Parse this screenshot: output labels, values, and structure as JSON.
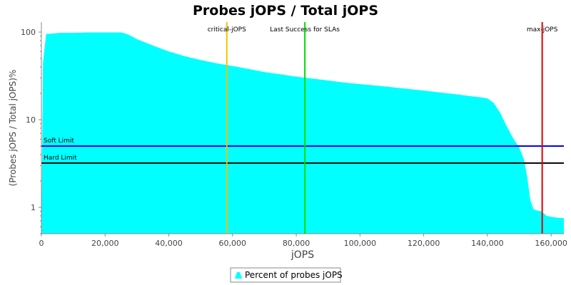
{
  "chart_data": {
    "type": "area",
    "title": "Probes jOPS / Total jOPS",
    "xlabel": "jOPS",
    "ylabel": "(Probes jOPS / Total jOPS)%",
    "xlim": [
      0,
      164000
    ],
    "ylim": [
      0.5,
      130
    ],
    "yscale": "log",
    "grid": false,
    "legend_position": "bottom-center",
    "x_ticks": [
      0,
      20000,
      40000,
      60000,
      80000,
      100000,
      120000,
      140000,
      160000
    ],
    "x_tick_labels": [
      "0",
      "20,000",
      "40,000",
      "60,000",
      "80,000",
      "100,000",
      "120,000",
      "140,000",
      "160,000"
    ],
    "y_ticks": [
      1,
      10,
      100
    ],
    "y_tick_labels": [
      "1",
      "10",
      "100"
    ],
    "series": [
      {
        "name": "Percent of probes jOPS",
        "color": "#00ffff",
        "x": [
          0,
          500,
          1500,
          3000,
          6000,
          10000,
          15000,
          20000,
          23000,
          25000,
          26500,
          28000,
          30000,
          33000,
          36000,
          40000,
          45000,
          50000,
          55000,
          60000,
          65000,
          70000,
          75000,
          80000,
          85000,
          90000,
          95000,
          100000,
          105000,
          110000,
          115000,
          120000,
          125000,
          130000,
          135000,
          138000,
          140000,
          142000,
          144000,
          146000,
          148000,
          150000,
          151500,
          152500,
          153500,
          154500,
          155500,
          157000,
          158500,
          160000,
          162000,
          164000
        ],
        "y": [
          0.5,
          45,
          95,
          96,
          98,
          98,
          99,
          99,
          99,
          99,
          96,
          91,
          83,
          75,
          68,
          60,
          53,
          48,
          44,
          41,
          38,
          35,
          33,
          31,
          29.5,
          28,
          26.5,
          25.5,
          24.5,
          23.5,
          22.5,
          21.5,
          20.5,
          19.5,
          18.5,
          18,
          17.5,
          15.5,
          12,
          8.5,
          6.2,
          4.8,
          3.5,
          2.2,
          1.2,
          0.95,
          0.92,
          0.9,
          0.8,
          0.78,
          0.76,
          0.75
        ]
      }
    ],
    "vertical_markers": [
      {
        "label": "critical-jOPS",
        "x": 58200,
        "color": "#f2c200"
      },
      {
        "label": "Last Success for SLAs",
        "x": 82700,
        "color": "#00dd00"
      },
      {
        "label": "max-jOPS",
        "x": 157200,
        "color": "#dd0000"
      }
    ],
    "horizontal_markers": [
      {
        "label": "Soft Limit",
        "y": 5,
        "color": "#0000ff"
      },
      {
        "label": "Hard Limit",
        "y": 3.2,
        "color": "#000000"
      }
    ]
  }
}
